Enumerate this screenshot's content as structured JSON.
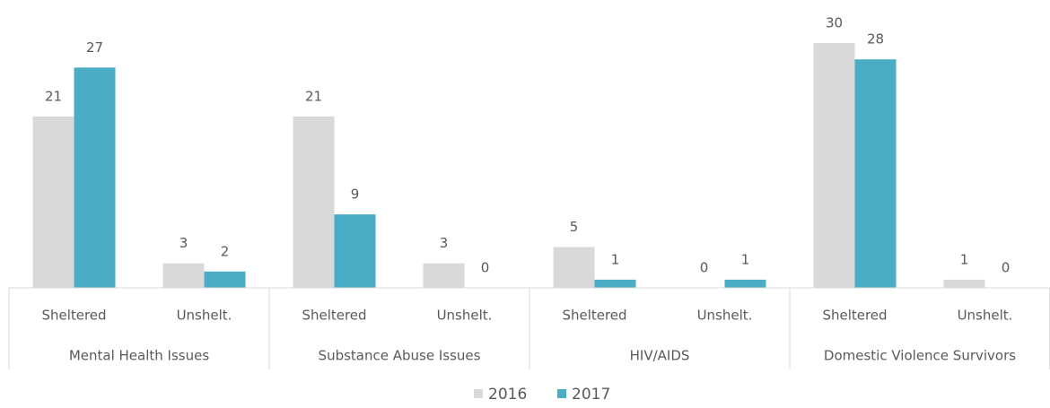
{
  "chart_data": {
    "type": "bar",
    "categories": [
      "Sheltered",
      "Unshelt.",
      "Sheltered",
      "Unshelt.",
      "Sheltered",
      "Unshelt.",
      "Sheltered",
      "Unshelt."
    ],
    "groups": [
      "Mental Health Issues",
      "Substance Abuse Issues",
      "HIV/AIDS",
      "Domestic Violence Survivors"
    ],
    "series": [
      {
        "name": "2016",
        "color": "#d9d9d9",
        "values": [
          21,
          3,
          21,
          3,
          5,
          0,
          30,
          1
        ]
      },
      {
        "name": "2017",
        "color": "#4bacc6",
        "values": [
          27,
          2,
          9,
          0,
          1,
          1,
          28,
          0
        ]
      }
    ],
    "ylim": [
      0,
      30
    ],
    "legend": "bottom"
  }
}
